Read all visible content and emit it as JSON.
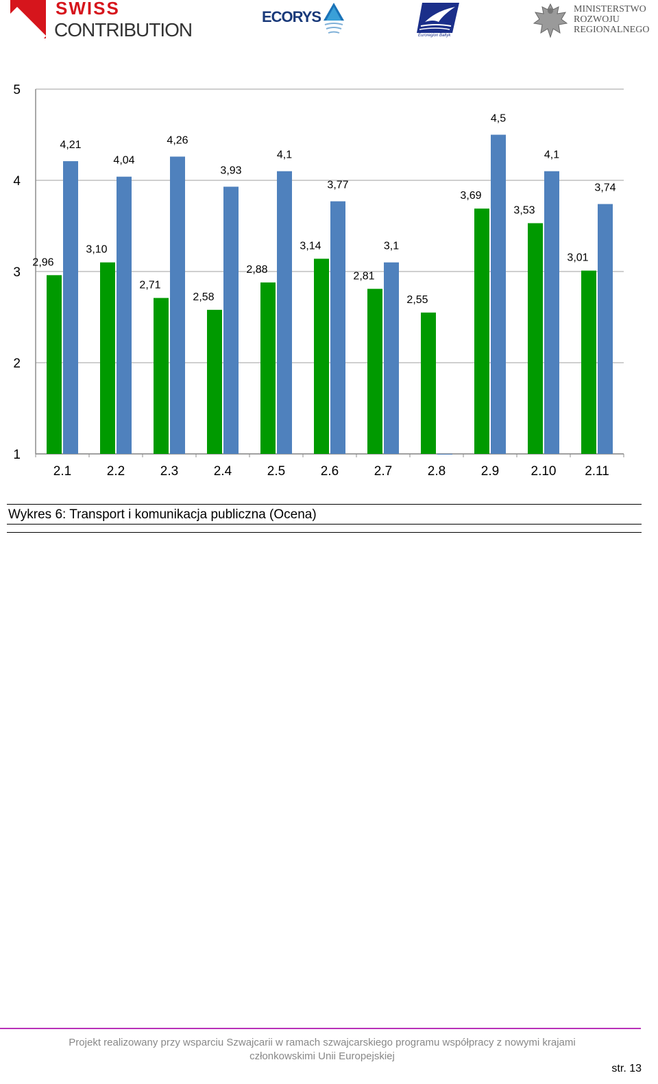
{
  "header": {
    "swiss_line1": "SWISS",
    "swiss_line2": "CONTRIBUTION",
    "ecorys": "ECORYS",
    "bird_caption": "Euroregion Bałtyk",
    "ministry_lines": "MINISTERSTWO\nROZWOJU\nREGIONALNEGO"
  },
  "colors": {
    "green": "#009a00",
    "blue": "#4f81bd",
    "grid": "#bfbfbf",
    "footer_line": "#b830b8"
  },
  "chart_data": {
    "type": "bar",
    "title": "",
    "xlabel": "",
    "ylabel": "",
    "ylim": [
      1,
      5
    ],
    "yticks": [
      "1",
      "2",
      "3",
      "4",
      "5"
    ],
    "grid": true,
    "categories": [
      "2.1",
      "2.2",
      "2.3",
      "2.4",
      "2.5",
      "2.6",
      "2.7",
      "2.8",
      "2.9",
      "2.10",
      "2.11"
    ],
    "series": [
      {
        "color": "#009a00",
        "values": [
          2.96,
          3.1,
          2.71,
          2.58,
          2.88,
          3.14,
          2.81,
          2.55,
          3.69,
          3.53,
          3.01
        ],
        "labels": [
          "2,96",
          "3,10",
          "2,71",
          "2,58",
          "2,88",
          "3,14",
          "2,81",
          "2,55",
          "3,69",
          "3,53",
          "3,01"
        ]
      },
      {
        "color": "#4f81bd",
        "values": [
          4.21,
          4.04,
          4.26,
          3.93,
          4.1,
          3.77,
          3.1,
          1.0,
          4.5,
          4.1,
          3.74
        ],
        "labels": [
          "4,21",
          "4,04",
          "4,26",
          "3,93",
          "4,1",
          "3,77",
          "3,1",
          "",
          "4,5",
          "4,1",
          "3,74"
        ]
      }
    ]
  },
  "caption": "Wykres 6: Transport i komunikacja publiczna (Ocena)",
  "footer": {
    "line1": "Projekt realizowany przy wsparciu Szwajcarii w ramach szwajcarskiego programu współpracy z nowymi krajami",
    "line2": "członkowskimi Unii Europejskiej",
    "page": "str. 13"
  }
}
